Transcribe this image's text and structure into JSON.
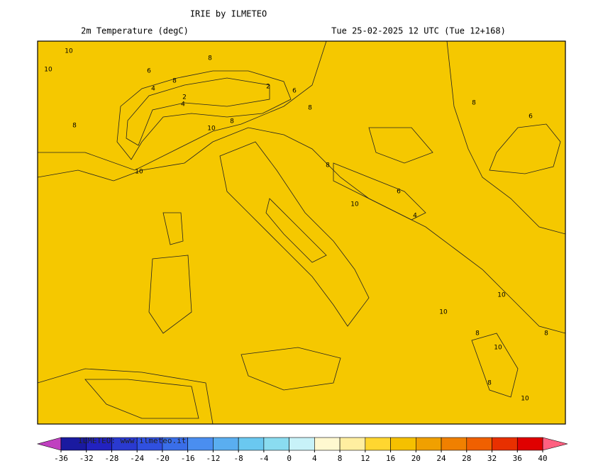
{
  "header": {
    "title": "IRIE by ILMETEO",
    "variable": "2m Temperature (degC)",
    "valid_time": "Tue 25-02-2025 12 UTC (Tue 12+168)"
  },
  "watermark": "ILMETEO: www.ilmeteo.it",
  "contour_labels": [
    10,
    10,
    8,
    8,
    6,
    4,
    2,
    4,
    8,
    10,
    10,
    8,
    8,
    6,
    2,
    4,
    6,
    8,
    10,
    8,
    6,
    10,
    8,
    10,
    8,
    10,
    8,
    10
  ],
  "colorbar": {
    "ticks": [
      -36,
      -32,
      -28,
      -24,
      -20,
      -16,
      -12,
      -8,
      -4,
      0,
      4,
      8,
      12,
      16,
      20,
      24,
      28,
      32,
      36,
      40
    ],
    "colors": [
      "#1a1aa0",
      "#2222c0",
      "#2a3ad0",
      "#3050e0",
      "#3a6ee8",
      "#4a8ef0",
      "#5aaef0",
      "#6ac8f0",
      "#8adcf0",
      "#c8f2f8",
      "#fff8d0",
      "#ffeea0",
      "#ffd630",
      "#f5c000",
      "#f0a000",
      "#f08000",
      "#f06000",
      "#e83000",
      "#e00000"
    ],
    "under_color": "#c040c0",
    "over_color": "#ff6080"
  }
}
